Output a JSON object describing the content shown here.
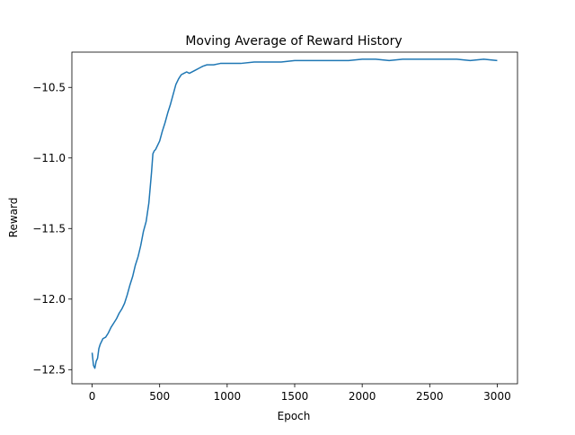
{
  "chart_data": {
    "type": "line",
    "title": "Moving Average of Reward History",
    "xlabel": "Epoch",
    "ylabel": "Reward",
    "xlim": [
      -150,
      3150
    ],
    "ylim": [
      -12.6,
      -10.25
    ],
    "xticks": [
      0,
      500,
      1000,
      1500,
      2000,
      2500,
      3000
    ],
    "yticks": [
      -12.5,
      -12.0,
      -11.5,
      -11.0,
      -10.5
    ],
    "ytick_labels": [
      "−12.5",
      "−12.0",
      "−11.5",
      "−11.0",
      "−10.5"
    ],
    "grid": false,
    "legend": "none",
    "line_color": "#1f77b4",
    "series": [
      {
        "x": [
          0,
          10,
          20,
          30,
          40,
          50,
          60,
          70,
          80,
          100,
          120,
          140,
          160,
          180,
          200,
          220,
          240,
          260,
          280,
          300,
          320,
          340,
          360,
          380,
          400,
          420,
          440,
          450,
          460,
          470,
          480,
          490,
          500,
          520,
          540,
          560,
          580,
          600,
          620,
          640,
          660,
          680,
          700,
          720,
          760,
          800,
          820,
          850,
          900,
          950,
          1000,
          1100,
          1200,
          1300,
          1400,
          1500,
          1600,
          1700,
          1800,
          1900,
          2000,
          2100,
          2200,
          2300,
          2400,
          2500,
          2600,
          2700,
          2800,
          2900,
          3000
        ],
        "y": [
          -12.38,
          -12.47,
          -12.49,
          -12.44,
          -12.42,
          -12.35,
          -12.32,
          -12.3,
          -12.28,
          -12.27,
          -12.24,
          -12.2,
          -12.17,
          -12.14,
          -12.1,
          -12.07,
          -12.03,
          -11.97,
          -11.9,
          -11.84,
          -11.76,
          -11.7,
          -11.62,
          -11.52,
          -11.45,
          -11.32,
          -11.1,
          -10.97,
          -10.95,
          -10.94,
          -10.92,
          -10.9,
          -10.88,
          -10.81,
          -10.75,
          -10.68,
          -10.62,
          -10.55,
          -10.48,
          -10.44,
          -10.41,
          -10.4,
          -10.39,
          -10.4,
          -10.38,
          -10.36,
          -10.35,
          -10.34,
          -10.34,
          -10.33,
          -10.33,
          -10.33,
          -10.32,
          -10.32,
          -10.32,
          -10.31,
          -10.31,
          -10.31,
          -10.31,
          -10.31,
          -10.3,
          -10.3,
          -10.31,
          -10.3,
          -10.3,
          -10.3,
          -10.3,
          -10.3,
          -10.31,
          -10.3,
          -10.31
        ]
      }
    ]
  }
}
